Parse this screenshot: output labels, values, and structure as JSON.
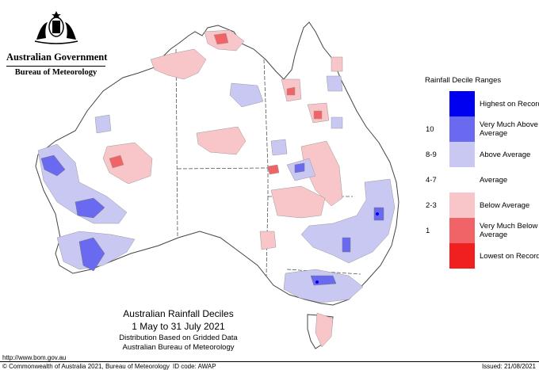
{
  "logo": {
    "government": "Australian Government",
    "bureau": "Bureau of Meteorology"
  },
  "legend": {
    "title": "Rainfall Decile Ranges",
    "items": [
      {
        "range": "",
        "label": "Highest on Record",
        "color": "#0000f0"
      },
      {
        "range": "10",
        "label": "Very Much Above Average",
        "color": "#6a6af0"
      },
      {
        "range": "8-9",
        "label": "Above Average",
        "color": "#c8c8f2"
      },
      {
        "range": "4-7",
        "label": "Average",
        "color": "#ffffff"
      },
      {
        "range": "2-3",
        "label": "Below Average",
        "color": "#f8c6c8"
      },
      {
        "range": "1",
        "label": "Very Much Below Average",
        "color": "#f06468"
      },
      {
        "range": "",
        "label": "Lowest on Record",
        "color": "#f02020"
      }
    ]
  },
  "title": {
    "line1": "Australian Rainfall Deciles",
    "line2": "1 May to 31 July 2021",
    "line3": "Distribution Based on Gridded Data",
    "line4": "Australian Bureau of Meteorology"
  },
  "footer": {
    "url": "http://www.bom.gov.au",
    "copyright": "© Commonwealth of Australia 2021, Bureau of Meteorology",
    "id_code": "ID code: AWAP",
    "issued": "Issued: 21/08/2021"
  }
}
